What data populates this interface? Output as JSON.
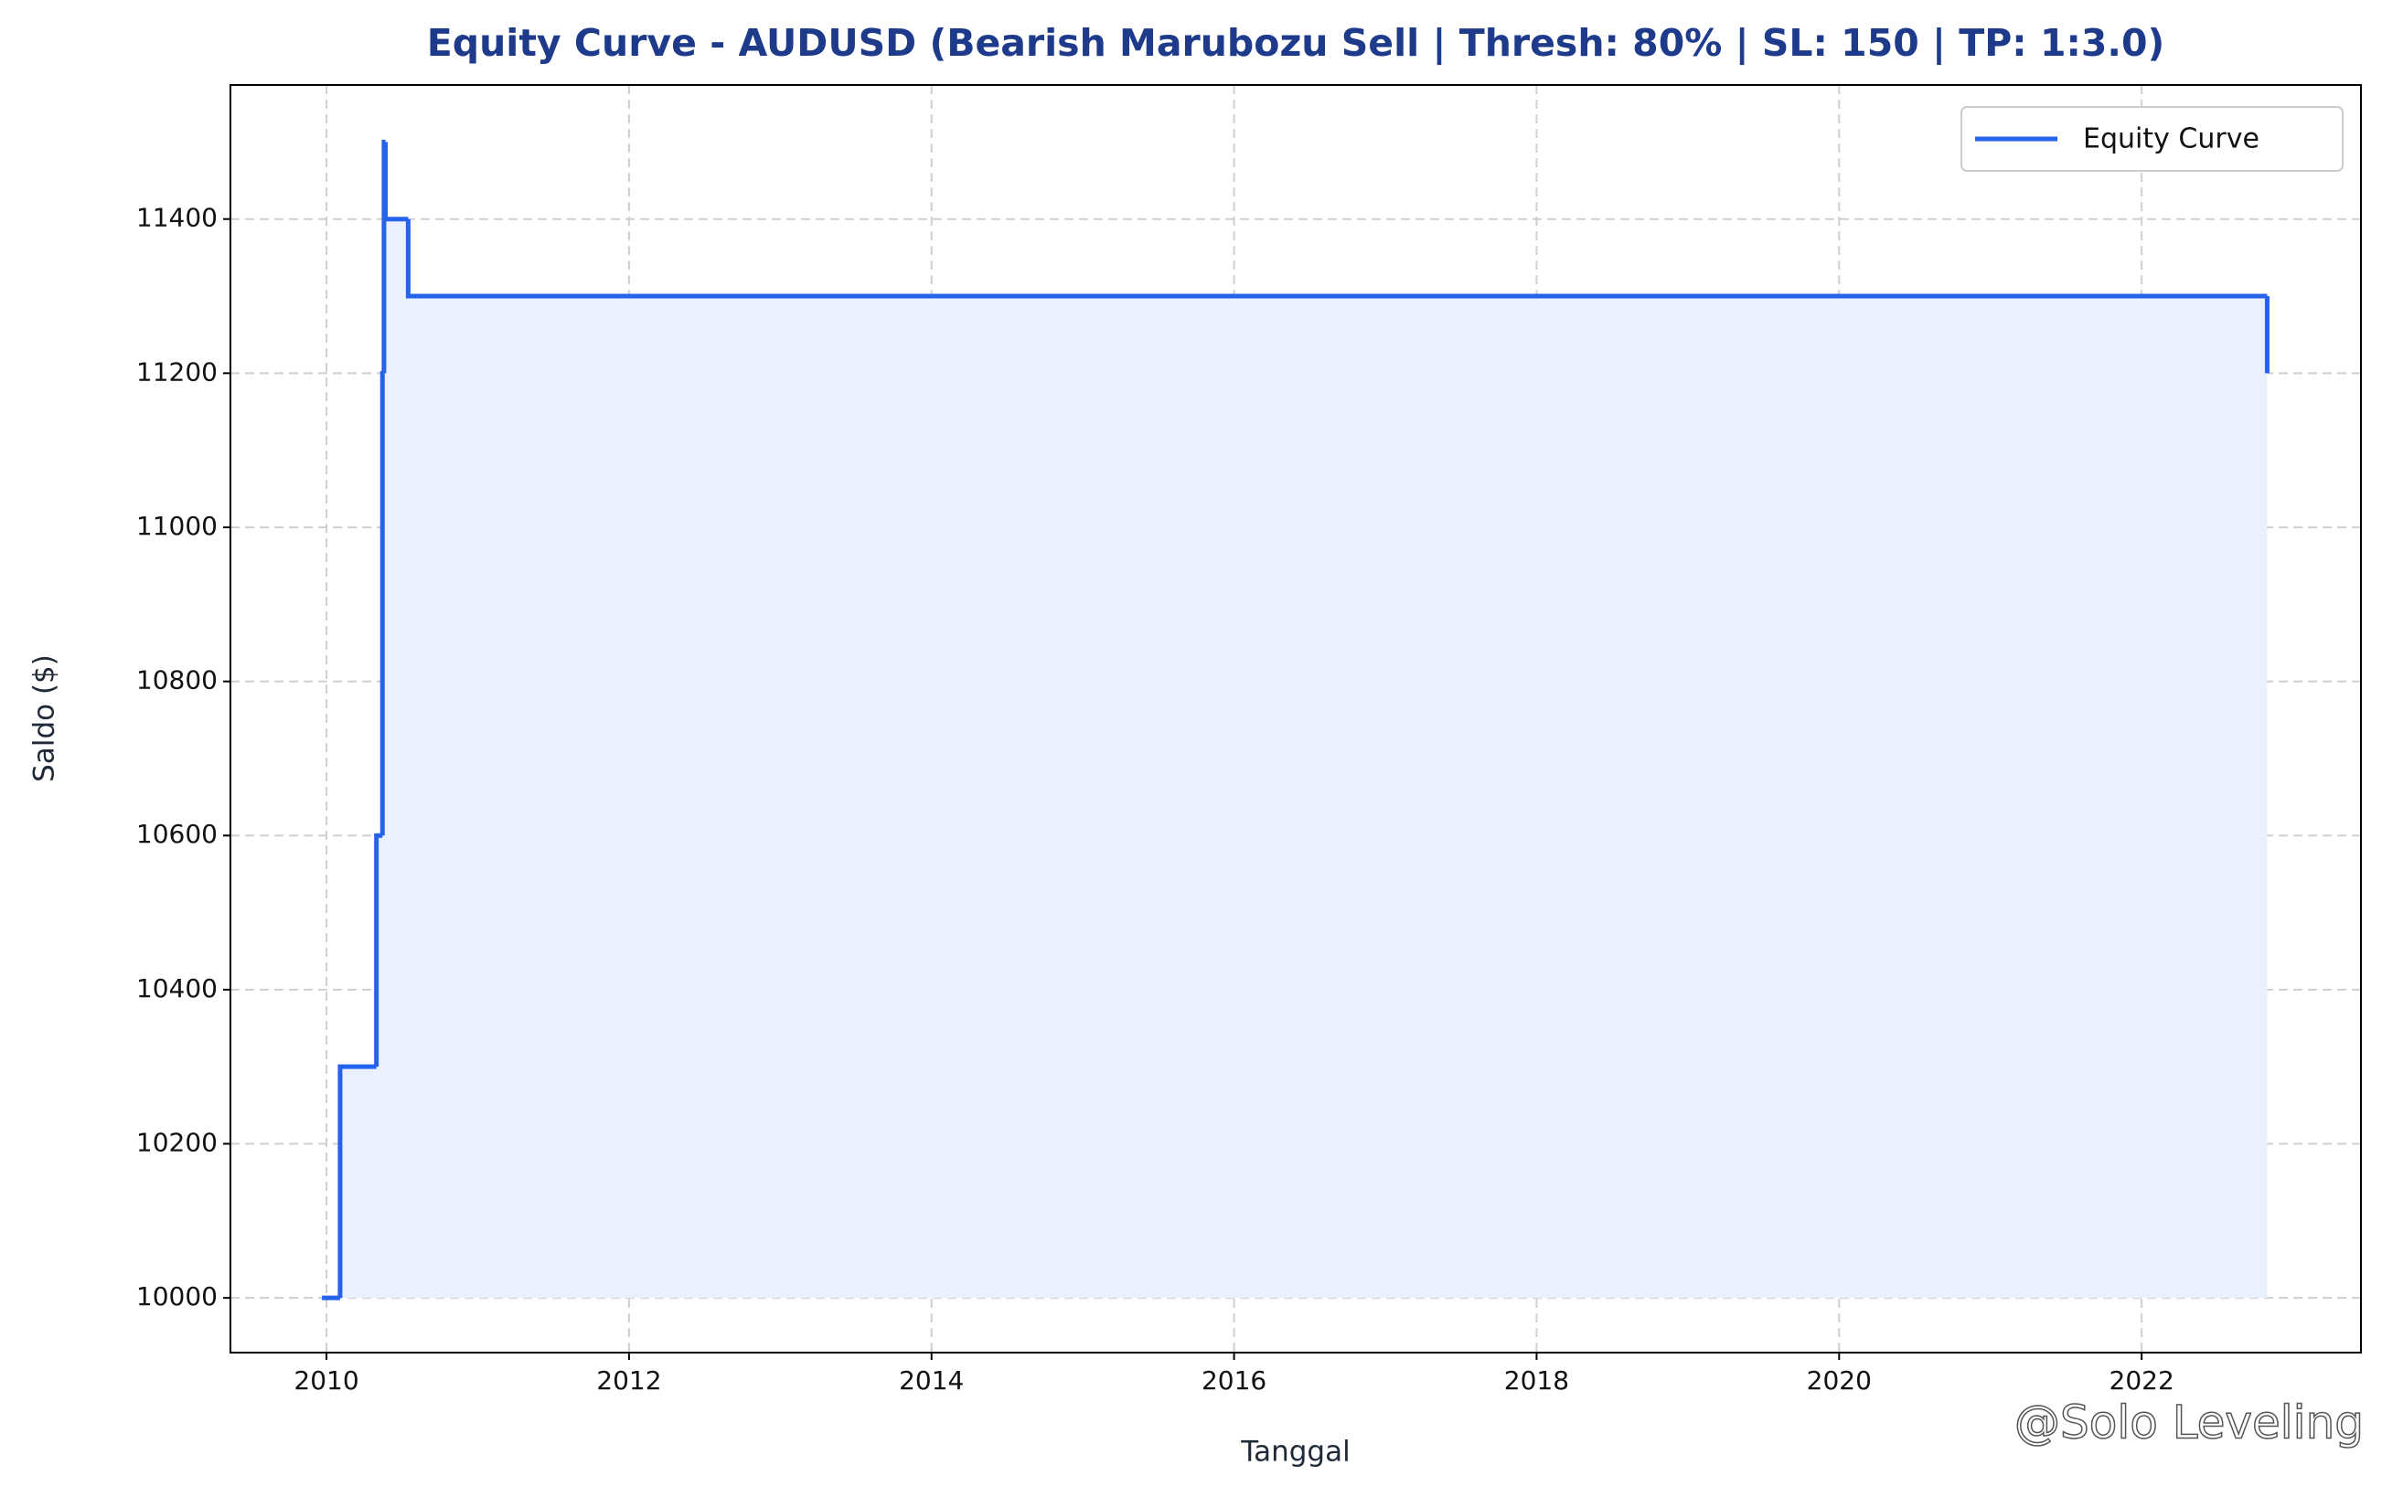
{
  "chart_data": {
    "type": "line",
    "step": "post",
    "title": "Equity Curve - AUDUSD (Bearish Marubozu Sell | Thresh: 80% | SL: 150 | TP: 1:3.0)",
    "x_label": "Tanggal",
    "y_label": "Saldo ($)",
    "x": [
      2009.97,
      2010.09,
      2010.33,
      2010.37,
      2010.38,
      2010.39,
      2010.54,
      2022.83
    ],
    "series": [
      {
        "name": "Equity Curve",
        "color": "#2563eb",
        "fill_color": "#eaf0fc",
        "values": [
          10000,
          10300,
          10600,
          11200,
          11500,
          11400,
          11300,
          11200
        ]
      }
    ],
    "fill_base": 10000,
    "xlim": [
      2009.365,
      2023.45
    ],
    "xticks": [
      2010,
      2012,
      2014,
      2016,
      2018,
      2020,
      2022
    ],
    "ylim": [
      9929,
      11574
    ],
    "yticks": [
      10000,
      10200,
      10400,
      10600,
      10800,
      11000,
      11200,
      11400
    ],
    "grid": true,
    "legend": "upper right",
    "watermark": "@Solo Leveling"
  }
}
